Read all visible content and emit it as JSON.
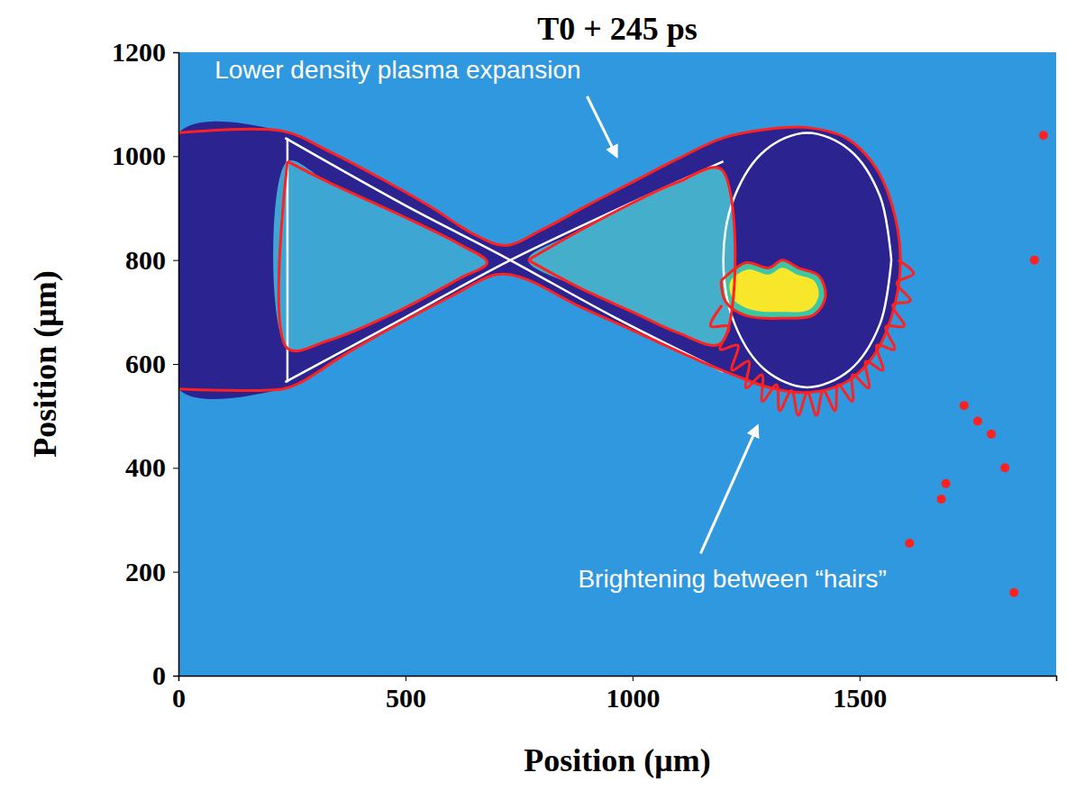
{
  "chart_data": {
    "type": "image",
    "title": "T0 + 245 ps",
    "x_label": "Position (μm)",
    "y_label": "Position (μm)",
    "xlim": [
      0,
      1933
    ],
    "ylim": [
      0,
      1200
    ],
    "xticks": [
      0,
      500,
      1000,
      1500
    ],
    "yticks": [
      0,
      200,
      400,
      600,
      800,
      1000,
      1200
    ],
    "series": [
      {
        "type": "area",
        "color": "#2b2390",
        "x": [
          0,
          230,
          330,
          450,
          560,
          650,
          720,
          800,
          900,
          1000,
          1100,
          1200,
          1300,
          1385,
          1470,
          1530,
          1570,
          1590,
          1570,
          1530,
          1470,
          1385,
          1300,
          1220,
          1150,
          1000,
          880,
          760,
          700,
          600,
          480,
          360,
          270,
          230,
          0
        ],
        "y": [
          1045,
          1048,
          1010,
          955,
          900,
          850,
          828,
          858,
          905,
          950,
          995,
          1035,
          1052,
          1055,
          1035,
          985,
          910,
          800,
          690,
          615,
          565,
          545,
          555,
          580,
          605,
          665,
          712,
          765,
          772,
          730,
          675,
          615,
          565,
          552,
          552
        ]
      },
      {
        "type": "area",
        "color": "#3ea6d2",
        "x": [
          240,
          240,
          330,
          480,
          620,
          680,
          620,
          480,
          330
        ],
        "y": [
          990,
          630,
          645,
          700,
          765,
          795,
          830,
          890,
          950
        ]
      },
      {
        "type": "area",
        "color": "#45aecb",
        "x": [
          770,
          880,
          1000,
          1100,
          1195,
          1195,
          1100,
          1000,
          880
        ],
        "y": [
          800,
          855,
          910,
          950,
          975,
          640,
          660,
          700,
          748
        ]
      },
      {
        "type": "area",
        "color": "#3cc6a6",
        "x": [
          1195,
          1250,
          1300,
          1330,
          1365,
          1410,
          1425,
          1400,
          1330,
          1250,
          1205
        ],
        "y": [
          760,
          795,
          785,
          800,
          785,
          770,
          730,
          695,
          688,
          693,
          720
        ]
      },
      {
        "type": "area",
        "color": "#f7e62a",
        "x": [
          1215,
          1255,
          1300,
          1330,
          1362,
          1400,
          1410,
          1390,
          1330,
          1260,
          1222
        ],
        "y": [
          758,
          782,
          772,
          785,
          772,
          760,
          732,
          705,
          700,
          705,
          725
        ]
      },
      {
        "type": "line",
        "color": "#ffffff",
        "x": [
          235,
          500,
          720,
          960,
          1200
        ],
        "y": [
          1035,
          905,
          805,
          690,
          585
        ]
      },
      {
        "type": "line",
        "color": "#ffffff",
        "x": [
          235,
          500,
          720,
          960,
          1200
        ],
        "y": [
          565,
          690,
          795,
          895,
          990
        ]
      },
      {
        "type": "line",
        "color": "#ffffff",
        "x": [
          240,
          240
        ],
        "y": [
          1035,
          565
        ]
      },
      {
        "type": "line",
        "color": "#ffffff",
        "x": [
          1570,
          1545,
          1478,
          1385,
          1293,
          1225,
          1200,
          1225,
          1293,
          1385,
          1478,
          1545,
          1570
        ],
        "y": [
          800,
          923,
          1012,
          1045,
          1012,
          923,
          800,
          677,
          588,
          555,
          588,
          677,
          800
        ]
      },
      {
        "type": "line",
        "color": "#ff2020",
        "x": [
          0,
          230,
          330,
          450,
          560,
          650,
          720,
          800,
          900,
          1000,
          1100,
          1200,
          1300,
          1385,
          1470,
          1530,
          1570,
          1590,
          1570,
          1530,
          1470,
          1385,
          1300,
          1220,
          1150,
          1000,
          880,
          760,
          700,
          600,
          480,
          360,
          270,
          230,
          0
        ],
        "y": [
          1045,
          1048,
          1010,
          955,
          900,
          850,
          828,
          858,
          905,
          950,
          995,
          1035,
          1052,
          1055,
          1035,
          985,
          910,
          800,
          690,
          615,
          565,
          545,
          555,
          580,
          605,
          665,
          712,
          765,
          772,
          730,
          675,
          615,
          565,
          552,
          552
        ]
      },
      {
        "type": "line",
        "color": "#ff2020",
        "x": [
          240,
          240,
          330,
          480,
          620,
          680,
          620,
          480,
          330,
          240
        ],
        "y": [
          990,
          630,
          645,
          700,
          765,
          795,
          830,
          890,
          950,
          990
        ]
      },
      {
        "type": "line",
        "color": "#ff2020",
        "x": [
          770,
          880,
          1000,
          1100,
          1195,
          1195,
          1100,
          1000,
          880,
          770
        ],
        "y": [
          800,
          855,
          910,
          950,
          975,
          640,
          660,
          700,
          748,
          800
        ]
      },
      {
        "type": "line",
        "color": "#ff2020",
        "x": [
          1195,
          1250,
          1300,
          1330,
          1365,
          1410,
          1425,
          1400,
          1330,
          1250,
          1205,
          1195
        ],
        "y": [
          760,
          795,
          785,
          800,
          785,
          770,
          730,
          695,
          688,
          693,
          720,
          760
        ]
      },
      {
        "type": "line",
        "color": "#ff2020",
        "x": [
          1197,
          1172,
          1212,
          1193,
          1232,
          1219,
          1256,
          1250,
          1285,
          1286,
          1317,
          1324,
          1350,
          1365,
          1385,
          1405,
          1420,
          1446,
          1453,
          1484,
          1485,
          1520,
          1514,
          1551,
          1538,
          1577,
          1558,
          1598,
          1573,
          1612,
          1582,
          1619,
          1585
        ],
        "y": [
          713,
          673,
          672,
          628,
          636,
          588,
          605,
          554,
          579,
          528,
          560,
          510,
          549,
          501,
          545,
          501,
          549,
          510,
          560,
          528,
          579,
          554,
          605,
          588,
          636,
          628,
          672,
          673,
          713,
          722,
          756,
          774,
          800
        ]
      },
      {
        "type": "scatter",
        "color": "#ff2020",
        "x": [
          1760,
          1730,
          1790,
          1690,
          1820,
          1680,
          1610,
          1885,
          1905,
          1840
        ],
        "y": [
          490,
          520,
          465,
          370,
          400,
          340,
          255,
          800,
          1040,
          160
        ]
      }
    ],
    "annotations": [
      {
        "text": "Lower density plasma expansion",
        "x": 80,
        "y": 1150,
        "arrow_from": [
          900,
          1115
        ],
        "arrow_to": [
          965,
          1000
        ]
      },
      {
        "text": "Brightening between “hairs”",
        "x": 880,
        "y": 170,
        "arrow_from": [
          1150,
          235
        ],
        "arrow_to": [
          1275,
          480
        ]
      }
    ]
  }
}
